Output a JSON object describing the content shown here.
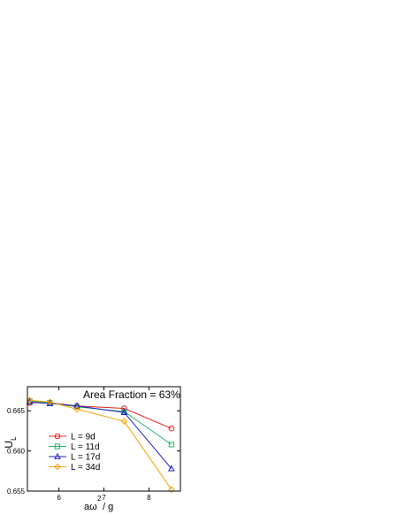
{
  "chart_data": {
    "type": "line",
    "annotation": "Area Fraction = 63%",
    "ylabel": {
      "main": "U",
      "sub": "L"
    },
    "xlabel": {
      "main": "aω",
      "sup": "2",
      "rest": "/ g"
    },
    "xlim": [
      5.3,
      8.7
    ],
    "ylim": [
      0.655,
      0.668
    ],
    "xticks": [
      6,
      7,
      8
    ],
    "xtick_labels": [
      "6",
      "7",
      "8"
    ],
    "yticks": [
      0.655,
      0.66,
      0.665
    ],
    "ytick_labels": [
      "0.655",
      "0.660",
      "0.665"
    ],
    "legend_position": "lower-left",
    "series": [
      {
        "name": "L = 9d",
        "color": "#e8231f",
        "marker": "circle",
        "x": [
          5.35,
          5.8,
          6.4,
          7.45,
          8.5
        ],
        "y": [
          0.666,
          0.666,
          0.6656,
          0.6653,
          0.6628
        ]
      },
      {
        "name": "L = 11d",
        "color": "#1fb86a",
        "marker": "square",
        "x": [
          5.35,
          5.8,
          6.4,
          7.45,
          8.5
        ],
        "y": [
          0.6662,
          0.666,
          0.6655,
          0.6649,
          0.6608
        ]
      },
      {
        "name": "L = 17d",
        "color": "#1f1fc8",
        "marker": "triangle",
        "x": [
          5.35,
          5.8,
          6.4,
          7.45,
          8.5
        ],
        "y": [
          0.6661,
          0.6659,
          0.6656,
          0.6648,
          0.6578
        ]
      },
      {
        "name": "L = 34d",
        "color": "#f0a500",
        "marker": "diamond",
        "x": [
          5.35,
          5.8,
          6.4,
          7.45,
          8.5
        ],
        "y": [
          0.6663,
          0.6661,
          0.6652,
          0.6637,
          0.6552
        ]
      }
    ]
  }
}
